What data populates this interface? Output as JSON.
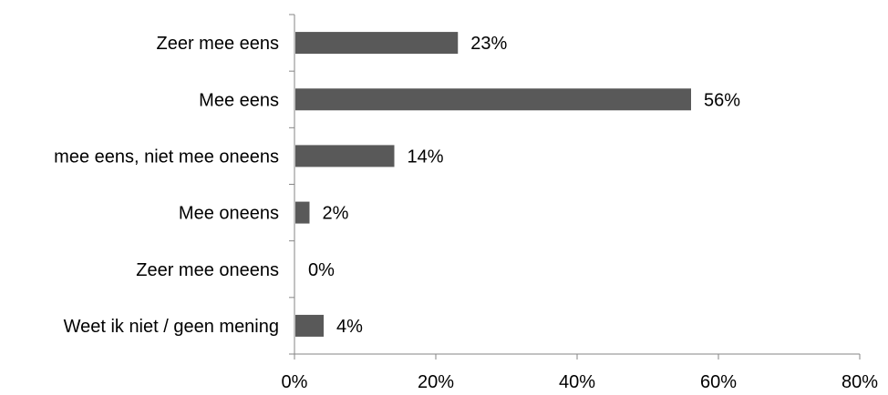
{
  "chart_data": {
    "type": "bar",
    "orientation": "horizontal",
    "categories": [
      "Zeer mee eens",
      "Mee eens",
      "mee eens, niet mee oneens",
      "Mee oneens",
      "Zeer mee oneens",
      "Weet ik niet / geen mening"
    ],
    "values": [
      23,
      56,
      14,
      2,
      0,
      4
    ],
    "data_labels": [
      "23%",
      "56%",
      "14%",
      "2%",
      "0%",
      "4%"
    ],
    "xlim": [
      0,
      80
    ],
    "x_ticks": [
      0,
      20,
      40,
      60,
      80
    ],
    "x_tick_labels": [
      "0%",
      "20%",
      "40%",
      "60%",
      "80%"
    ],
    "bar_color": "#595959",
    "axis_color": "#868686",
    "grid": false,
    "legend": "none"
  }
}
